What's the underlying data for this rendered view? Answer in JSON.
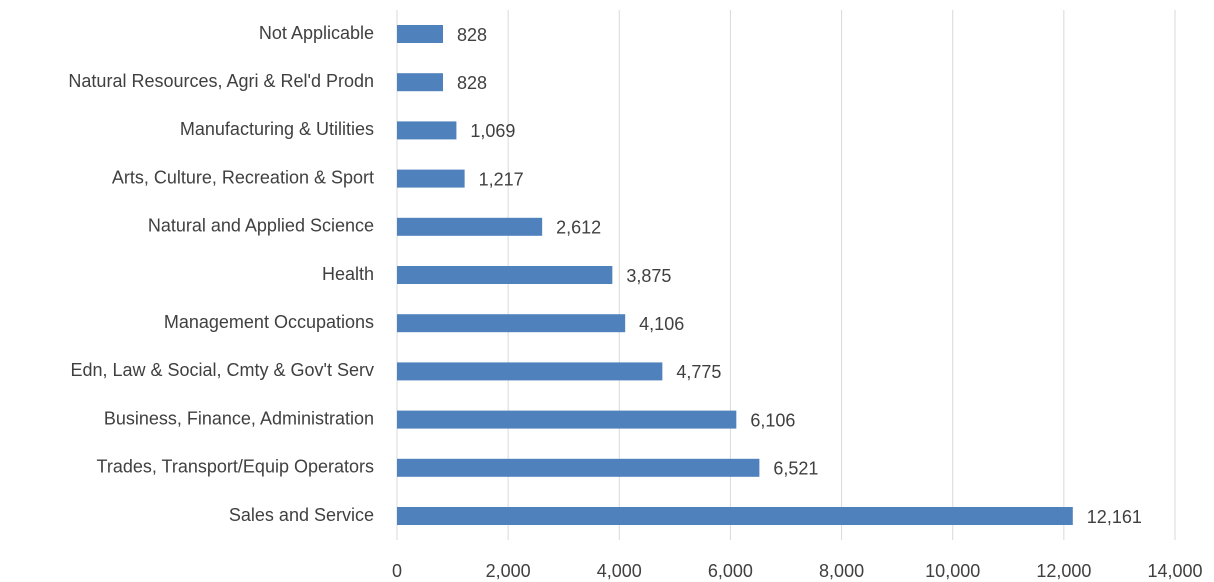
{
  "chart_data": {
    "type": "barh",
    "categories": [
      "Not Applicable",
      "Natural Resources, Agri & Rel'd Prodn",
      "Manufacturing & Utilities",
      "Arts, Culture, Recreation & Sport",
      "Natural and Applied Science",
      "Health",
      "Management Occupations",
      "Edn, Law & Social, Cmty & Gov't Serv",
      "Business, Finance, Administration",
      "Trades, Transport/Equip Operators",
      "Sales and Service"
    ],
    "values": [
      828,
      828,
      1069,
      1217,
      2612,
      3875,
      4106,
      4775,
      6106,
      6521,
      12161
    ],
    "value_labels": [
      "828",
      "828",
      "1,069",
      "1,217",
      "2,612",
      "3,875",
      "4,106",
      "4,775",
      "6,106",
      "6,521",
      "12,161"
    ],
    "color": "#4f81bd",
    "xlim": [
      0,
      14000
    ],
    "xticks": [
      0,
      {
        "value": 2000,
        "label": "2,000"
      },
      {
        "value": 4000,
        "label": "4,000"
      },
      {
        "value": 6000,
        "label": "6,000"
      },
      {
        "value": 8000,
        "label": "8,000"
      },
      {
        "value": 10000,
        "label": "10,000"
      },
      {
        "value": 12000,
        "label": "12,000"
      },
      {
        "value": 14000,
        "label": "14,000"
      }
    ],
    "grid": true
  }
}
